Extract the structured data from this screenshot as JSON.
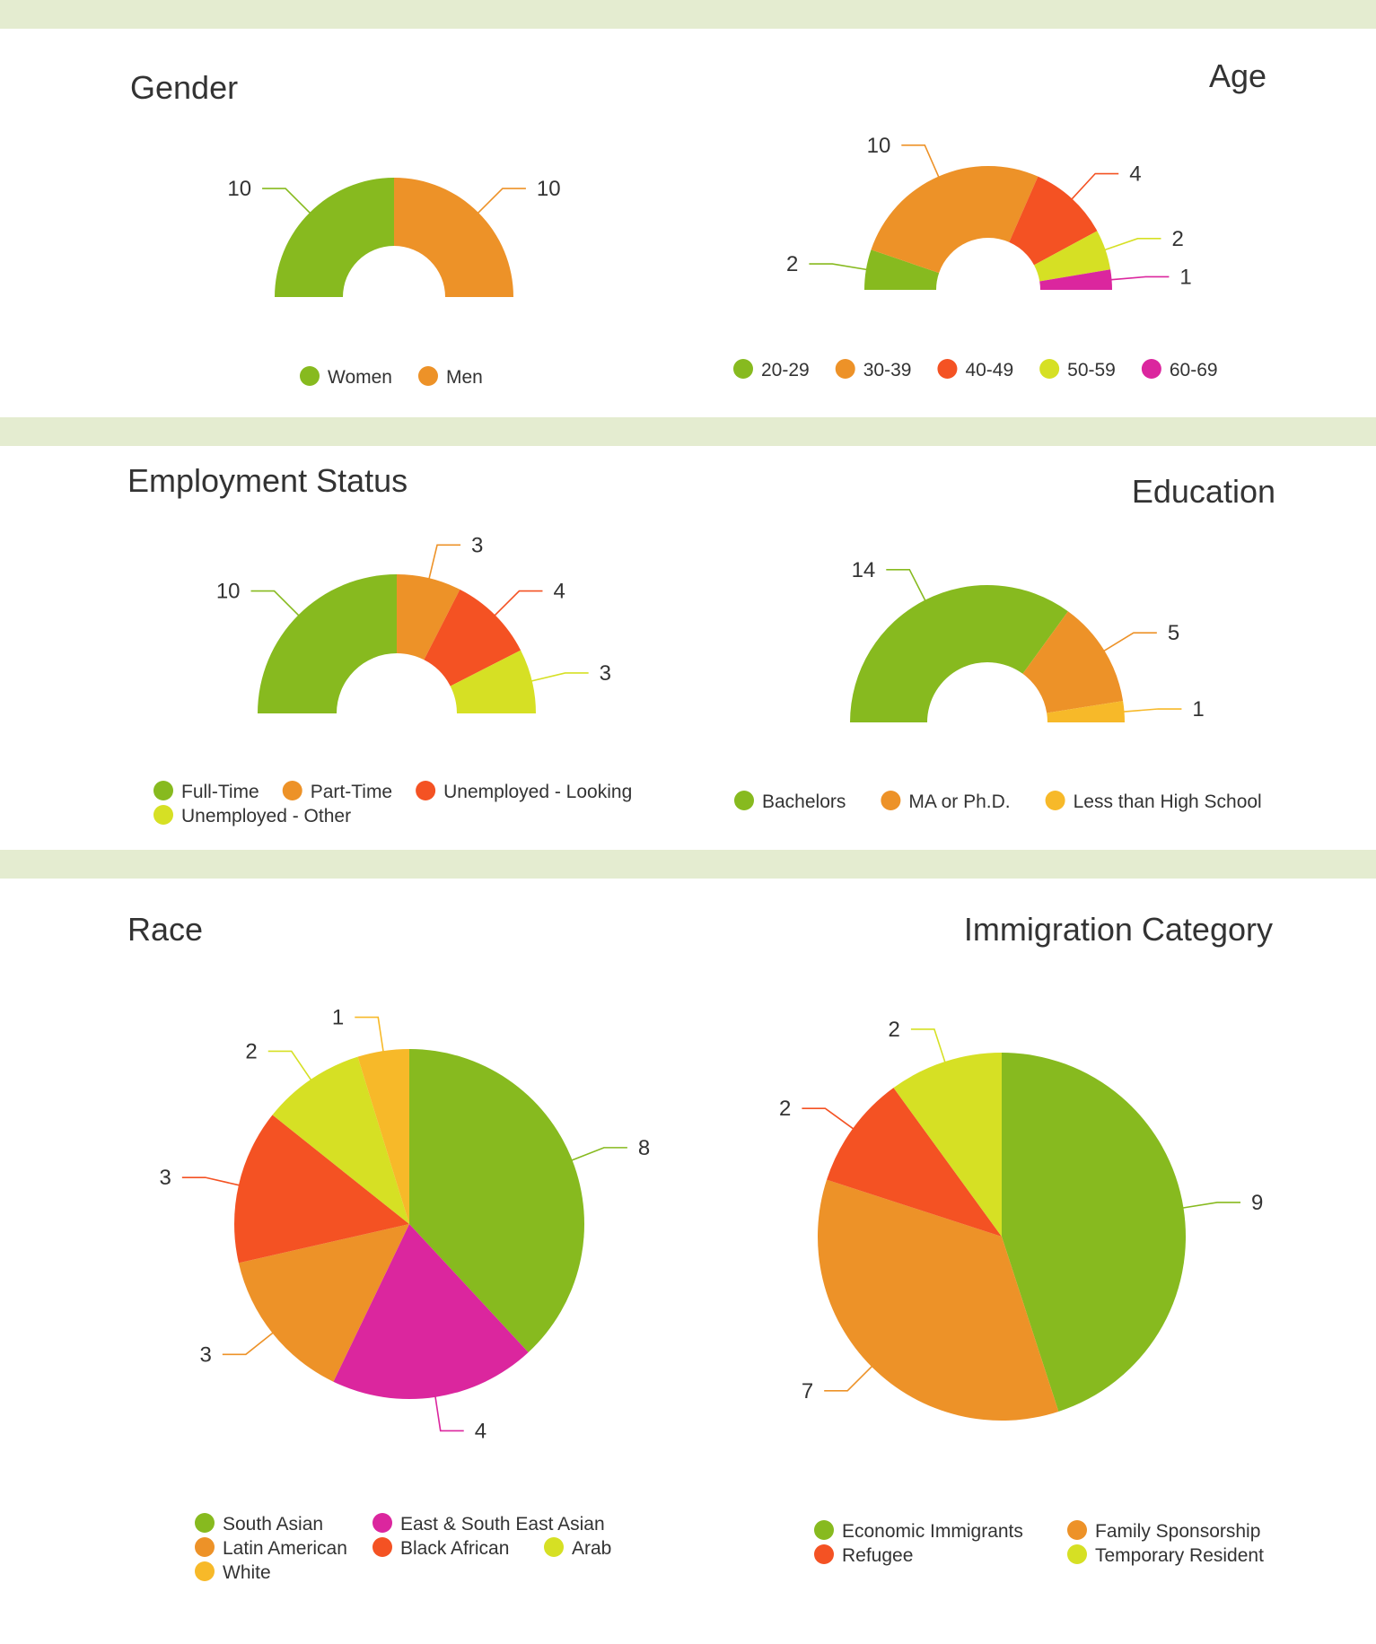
{
  "colors": {
    "band": "#e4ecd0",
    "green": "#87ba1f",
    "orange": "#ed9228",
    "red": "#f45223",
    "yellow": "#d6e024",
    "magenta": "#db269e",
    "gold": "#f7b929"
  },
  "chart_data": [
    {
      "type": "pie",
      "variant": "semi-donut",
      "title": "Gender",
      "categories": [
        "Women",
        "Men"
      ],
      "values": [
        10,
        10
      ],
      "colors": [
        "#87ba1f",
        "#ed9228"
      ],
      "legend": "bottom"
    },
    {
      "type": "pie",
      "variant": "semi-donut",
      "title": "Age",
      "categories": [
        "20-29",
        "30-39",
        "40-49",
        "50-59",
        "60-69"
      ],
      "values": [
        2,
        10,
        4,
        2,
        1
      ],
      "colors": [
        "#87ba1f",
        "#ed9228",
        "#f45223",
        "#d6e024",
        "#db269e"
      ],
      "legend": "bottom"
    },
    {
      "type": "pie",
      "variant": "semi-donut",
      "title": "Employment Status",
      "categories": [
        "Full-Time",
        "Part-Time",
        "Unemployed - Looking",
        "Unemployed - Other"
      ],
      "values": [
        10,
        3,
        4,
        3
      ],
      "colors": [
        "#87ba1f",
        "#ed9228",
        "#f45223",
        "#d6e024"
      ],
      "legend": "bottom"
    },
    {
      "type": "pie",
      "variant": "semi-donut",
      "title": "Education",
      "categories": [
        "Bachelors",
        "MA or Ph.D.",
        "Less than High School"
      ],
      "values": [
        14,
        5,
        1
      ],
      "colors": [
        "#87ba1f",
        "#ed9228",
        "#f7b929"
      ],
      "legend": "bottom"
    },
    {
      "type": "pie",
      "title": "Race",
      "categories": [
        "South Asian",
        "East & South East Asian",
        "Latin American",
        "Black African",
        "Arab",
        "White"
      ],
      "values": [
        8,
        4,
        3,
        3,
        2,
        1
      ],
      "colors": [
        "#87ba1f",
        "#db269e",
        "#ed9228",
        "#f45223",
        "#d6e024",
        "#f7b929"
      ],
      "legend": "bottom"
    },
    {
      "type": "pie",
      "title": "Immigration Category",
      "categories": [
        "Economic Immigrants",
        "Family Sponsorship",
        "Refugee",
        "Temporary Resident"
      ],
      "values": [
        9,
        7,
        2,
        2
      ],
      "colors": [
        "#87ba1f",
        "#ed9228",
        "#f45223",
        "#d6e024"
      ],
      "legend": "bottom"
    }
  ]
}
